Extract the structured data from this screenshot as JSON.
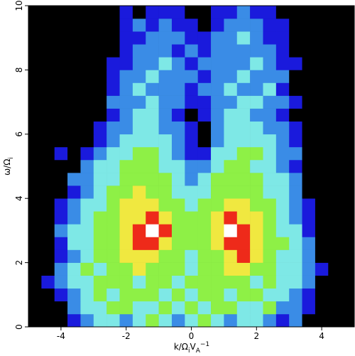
{
  "chart_data": {
    "type": "heatmap",
    "xlabel": [
      {
        "text": "k/Ω"
      },
      {
        "text": "i",
        "shift": "sub"
      },
      {
        "text": "V"
      },
      {
        "text": "A",
        "shift": "sub"
      },
      {
        "text": "−1",
        "shift": "super"
      }
    ],
    "ylabel": [
      {
        "text": "ω/Ω"
      },
      {
        "text": "i",
        "shift": "sub"
      }
    ],
    "xlim": [
      -5,
      5
    ],
    "ylim": [
      0,
      10
    ],
    "xticks": [
      -4,
      -2,
      0,
      2,
      4
    ],
    "yticks": [
      0,
      2,
      4,
      6,
      8,
      10
    ],
    "colors": [
      "#000000",
      "#1a1adc",
      "#3a8ce6",
      "#7ee8e6",
      "#8ef046",
      "#f0e840",
      "#ee2a1a",
      "#ffffff"
    ],
    "z": [
      [
        0,
        0,
        0,
        1,
        2,
        3,
        3,
        2,
        3,
        4,
        3,
        2,
        3,
        4,
        3,
        2,
        3,
        3,
        2,
        1,
        2,
        0,
        0,
        0,
        0
      ],
      [
        0,
        0,
        0,
        2,
        3,
        3,
        4,
        4,
        3,
        3,
        4,
        3,
        4,
        3,
        4,
        4,
        3,
        3,
        4,
        2,
        2,
        1,
        0,
        0,
        0
      ],
      [
        0,
        0,
        1,
        2,
        3,
        4,
        3,
        4,
        4,
        4,
        3,
        4,
        3,
        4,
        4,
        3,
        4,
        4,
        3,
        3,
        2,
        1,
        0,
        0,
        0
      ],
      [
        0,
        1,
        2,
        3,
        3,
        4,
        4,
        4,
        3,
        4,
        4,
        3,
        4,
        4,
        4,
        4,
        4,
        3,
        4,
        3,
        3,
        2,
        0,
        0,
        0
      ],
      [
        0,
        0,
        2,
        3,
        4,
        3,
        4,
        4,
        5,
        4,
        4,
        4,
        3,
        4,
        4,
        5,
        5,
        4,
        4,
        3,
        3,
        2,
        1,
        0,
        0
      ],
      [
        0,
        0,
        1,
        2,
        3,
        4,
        4,
        5,
        5,
        5,
        4,
        4,
        3,
        4,
        4,
        5,
        6,
        5,
        4,
        3,
        3,
        2,
        0,
        0,
        0
      ],
      [
        0,
        0,
        1,
        3,
        3,
        4,
        4,
        5,
        6,
        6,
        5,
        4,
        4,
        4,
        5,
        6,
        6,
        5,
        4,
        4,
        3,
        2,
        0,
        0,
        0
      ],
      [
        0,
        0,
        2,
        3,
        3,
        4,
        4,
        5,
        6,
        7,
        6,
        4,
        4,
        4,
        5,
        7,
        6,
        5,
        4,
        3,
        3,
        1,
        0,
        0,
        0
      ],
      [
        0,
        0,
        1,
        2,
        3,
        4,
        4,
        5,
        5,
        6,
        5,
        4,
        4,
        4,
        5,
        6,
        5,
        5,
        4,
        3,
        2,
        1,
        0,
        0,
        0
      ],
      [
        0,
        0,
        1,
        2,
        3,
        3,
        4,
        5,
        5,
        5,
        4,
        4,
        3,
        4,
        4,
        5,
        5,
        4,
        4,
        3,
        2,
        1,
        0,
        0,
        0
      ],
      [
        0,
        0,
        0,
        1,
        2,
        3,
        4,
        4,
        5,
        4,
        4,
        3,
        3,
        3,
        4,
        4,
        4,
        4,
        3,
        3,
        2,
        0,
        0,
        0,
        0
      ],
      [
        0,
        0,
        0,
        2,
        2,
        3,
        3,
        4,
        4,
        4,
        4,
        3,
        2,
        3,
        4,
        4,
        4,
        4,
        3,
        3,
        2,
        0,
        0,
        0,
        0
      ],
      [
        0,
        0,
        0,
        0,
        2,
        3,
        3,
        4,
        4,
        4,
        3,
        3,
        2,
        2,
        3,
        4,
        4,
        3,
        3,
        2,
        1,
        0,
        0,
        0,
        0
      ],
      [
        0,
        0,
        1,
        0,
        1,
        2,
        3,
        3,
        4,
        4,
        3,
        2,
        1,
        1,
        3,
        3,
        4,
        4,
        3,
        2,
        2,
        0,
        0,
        0,
        0
      ],
      [
        0,
        0,
        0,
        0,
        0,
        1,
        2,
        3,
        3,
        3,
        3,
        2,
        1,
        0,
        2,
        3,
        3,
        3,
        3,
        2,
        1,
        0,
        0,
        0,
        0
      ],
      [
        0,
        0,
        0,
        0,
        0,
        1,
        2,
        2,
        3,
        3,
        2,
        2,
        1,
        0,
        2,
        3,
        3,
        3,
        2,
        2,
        1,
        0,
        0,
        0,
        0
      ],
      [
        0,
        0,
        0,
        0,
        0,
        0,
        1,
        2,
        3,
        3,
        2,
        1,
        0,
        1,
        2,
        3,
        3,
        2,
        2,
        1,
        0,
        0,
        0,
        0,
        0
      ],
      [
        0,
        0,
        0,
        0,
        0,
        0,
        2,
        2,
        2,
        3,
        2,
        2,
        1,
        1,
        2,
        2,
        3,
        3,
        2,
        2,
        1,
        0,
        0,
        0,
        0
      ],
      [
        0,
        0,
        0,
        0,
        0,
        0,
        1,
        2,
        3,
        2,
        2,
        2,
        1,
        2,
        2,
        3,
        2,
        2,
        3,
        1,
        0,
        0,
        0,
        0,
        0
      ],
      [
        0,
        0,
        0,
        0,
        0,
        0,
        1,
        2,
        2,
        3,
        2,
        2,
        2,
        1,
        2,
        2,
        3,
        2,
        2,
        2,
        0,
        0,
        0,
        0,
        0
      ],
      [
        0,
        0,
        0,
        0,
        0,
        0,
        1,
        1,
        2,
        2,
        3,
        2,
        1,
        2,
        2,
        2,
        2,
        3,
        2,
        1,
        1,
        0,
        0,
        0,
        0
      ],
      [
        0,
        0,
        0,
        0,
        0,
        0,
        0,
        1,
        2,
        2,
        2,
        1,
        2,
        1,
        2,
        2,
        2,
        2,
        2,
        1,
        0,
        0,
        0,
        0,
        0
      ],
      [
        0,
        0,
        0,
        0,
        0,
        0,
        0,
        1,
        1,
        2,
        2,
        2,
        1,
        1,
        2,
        2,
        3,
        2,
        1,
        1,
        0,
        0,
        0,
        0,
        0
      ],
      [
        0,
        0,
        0,
        0,
        0,
        0,
        0,
        1,
        2,
        1,
        2,
        1,
        1,
        0,
        1,
        2,
        2,
        2,
        1,
        1,
        0,
        0,
        0,
        0,
        0
      ],
      [
        0,
        0,
        0,
        0,
        0,
        0,
        0,
        1,
        0,
        1,
        1,
        1,
        0,
        0,
        1,
        1,
        2,
        1,
        1,
        0,
        0,
        0,
        0,
        0,
        0
      ]
    ]
  }
}
